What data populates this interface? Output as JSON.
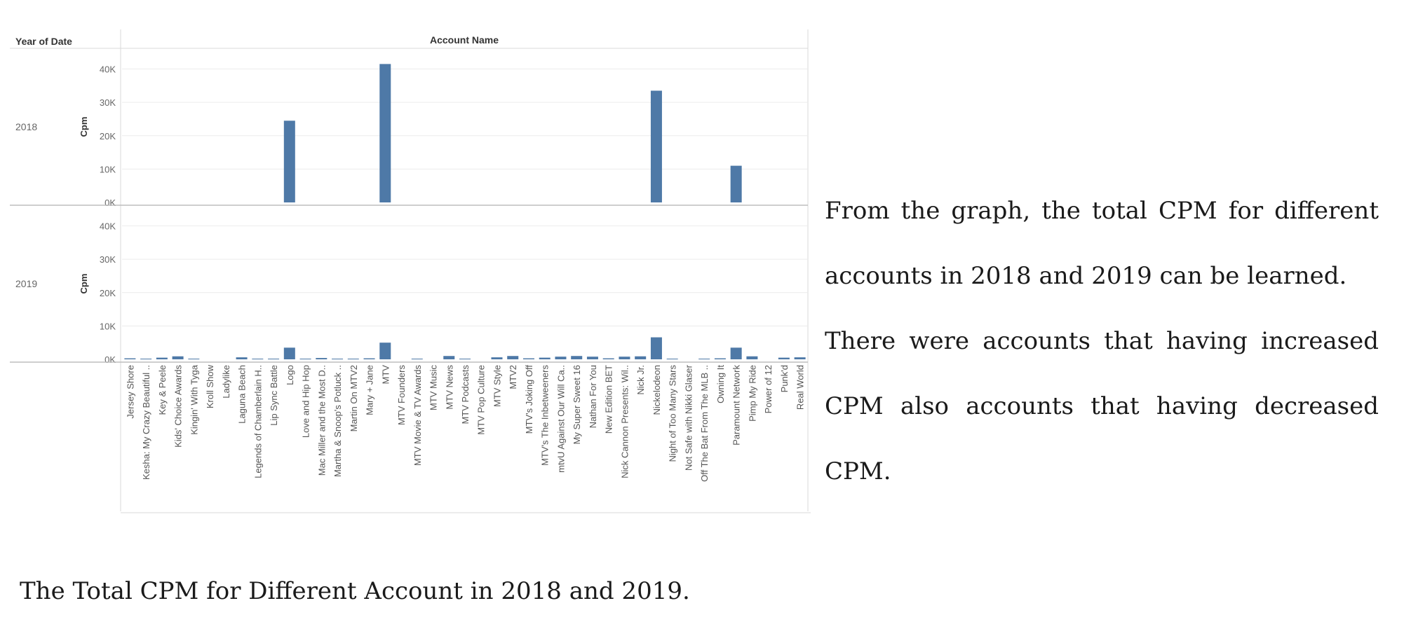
{
  "chart_data": {
    "type": "bar",
    "row_header": "Year of Date",
    "column_header": "Account Name",
    "ylabel": "Cpm",
    "ylim": [
      0,
      42000
    ],
    "yticks": [
      "0K",
      "10K",
      "20K",
      "30K",
      "40K"
    ],
    "bar_color": "#4e79a7",
    "categories": [
      "Jersey Shore",
      "Kesha: My Crazy Beautiful ..",
      "Key & Peele",
      "Kids' Choice Awards",
      "Kingin' With Tyga",
      "Kroll Show",
      "Ladylike",
      "Laguna Beach",
      "Legends of Chamberlain H..",
      "Lip Sync Battle",
      "Logo",
      "Love and Hip Hop",
      "Mac Miller and the Most D..",
      "Martha & Snoop's Potluck ..",
      "Martin On MTV2",
      "Mary + Jane",
      "MTV",
      "MTV Founders",
      "MTV Movie & TV Awards",
      "MTV Music",
      "MTV News",
      "MTV Podcasts",
      "MTV Pop Culture",
      "MTV Style",
      "MTV2",
      "MTV's Joking Off",
      "MTV's The Inbetweeners",
      "mtvU Against Our Will Ca..",
      "My Super Sweet 16",
      "Nathan For You",
      "New Edition BET",
      "Nick Cannon Presents: Wil..",
      "Nick Jr.",
      "Nickelodeon",
      "Night of Too Many Stars",
      "Not Safe with Nikki Glaser",
      "Off The Bat From The MLB ..",
      "Owning It",
      "Paramount Network",
      "Pimp My Ride",
      "Power of 12",
      "Punk'd",
      "Real World"
    ],
    "series": [
      {
        "name": "2018",
        "values": [
          0,
          0,
          0,
          0,
          0,
          0,
          0,
          0,
          0,
          0,
          24500,
          0,
          0,
          0,
          0,
          0,
          41500,
          0,
          0,
          0,
          0,
          0,
          0,
          0,
          0,
          0,
          0,
          0,
          0,
          0,
          0,
          0,
          0,
          33500,
          0,
          0,
          0,
          0,
          11000,
          0,
          0,
          0,
          0
        ]
      },
      {
        "name": "2019",
        "values": [
          300,
          200,
          500,
          900,
          200,
          0,
          0,
          600,
          200,
          200,
          3500,
          200,
          400,
          200,
          200,
          300,
          5000,
          0,
          200,
          0,
          1000,
          200,
          0,
          600,
          1000,
          300,
          500,
          800,
          1000,
          800,
          300,
          800,
          900,
          6600,
          200,
          0,
          200,
          300,
          3500,
          900,
          0,
          500,
          600
        ]
      }
    ]
  },
  "text": {
    "note1": "From the graph, the total CPM for different accounts in 2018 and 2019 can be learned.",
    "note2": "There were accounts that having increased CPM also accounts that having decreased CPM.",
    "caption": "The Total CPM for Different Account in 2018 and 2019."
  }
}
